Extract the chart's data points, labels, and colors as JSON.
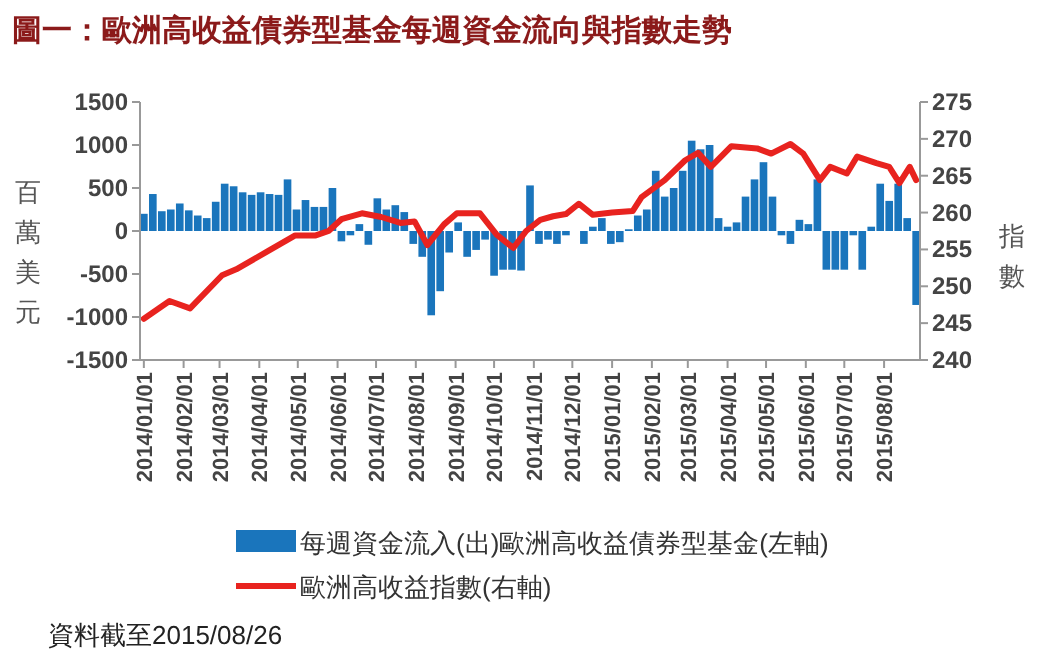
{
  "chart_data": {
    "type": "bar",
    "title": "圖一：歐洲高收益債券型基金每週資金流向與指數走勢",
    "ylabel": "百萬美元",
    "y2label": "指數",
    "annotations": [
      "資料截至2015/08/26"
    ],
    "xlim": [
      "2013-12-29",
      "2015-08-29"
    ],
    "xticks": [
      {
        "value": "2014-01-01",
        "label": "2014/01/01"
      },
      {
        "value": "2014-02-01",
        "label": "2014/02/01"
      },
      {
        "value": "2014-03-01",
        "label": "2014/03/01"
      },
      {
        "value": "2014-04-01",
        "label": "2014/04/01"
      },
      {
        "value": "2014-05-01",
        "label": "2014/05/01"
      },
      {
        "value": "2014-06-01",
        "label": "2014/06/01"
      },
      {
        "value": "2014-07-01",
        "label": "2014/07/01"
      },
      {
        "value": "2014-08-01",
        "label": "2014/08/01"
      },
      {
        "value": "2014-09-01",
        "label": "2014/09/01"
      },
      {
        "value": "2014-10-01",
        "label": "2014/10/01"
      },
      {
        "value": "2014-11-01",
        "label": "2014/11/01"
      },
      {
        "value": "2014-12-01",
        "label": "2014/12/01"
      },
      {
        "value": "2015-01-01",
        "label": "2015/01/01"
      },
      {
        "value": "2015-02-01",
        "label": "2015/02/01"
      },
      {
        "value": "2015-03-01",
        "label": "2015/03/01"
      },
      {
        "value": "2015-04-01",
        "label": "2015/04/01"
      },
      {
        "value": "2015-05-01",
        "label": "2015/05/01"
      },
      {
        "value": "2015-06-01",
        "label": "2015/06/01"
      },
      {
        "value": "2015-07-01",
        "label": "2015/07/01"
      },
      {
        "value": "2015-08-01",
        "label": "2015/08/01"
      }
    ],
    "ylim": [
      -1500,
      1500
    ],
    "yticks": [
      -1500,
      -1000,
      -500,
      0,
      500,
      1000,
      1500
    ],
    "y2lim": [
      240,
      275
    ],
    "y2ticks": [
      240,
      245,
      250,
      255,
      260,
      265,
      270,
      275
    ],
    "legend": "bottom",
    "grid": false,
    "series": [
      {
        "axis": "y",
        "name": "每週資金流入(出)歐洲高收益債券型基金(左軸)",
        "color": "#1a75bc",
        "x": [
          "2014-01-01",
          "2014-01-08",
          "2014-01-15",
          "2014-01-22",
          "2014-01-29",
          "2014-02-05",
          "2014-02-12",
          "2014-02-19",
          "2014-02-26",
          "2014-03-05",
          "2014-03-12",
          "2014-03-19",
          "2014-03-26",
          "2014-04-02",
          "2014-04-09",
          "2014-04-16",
          "2014-04-23",
          "2014-04-30",
          "2014-05-07",
          "2014-05-14",
          "2014-05-21",
          "2014-05-28",
          "2014-06-04",
          "2014-06-11",
          "2014-06-18",
          "2014-06-25",
          "2014-07-02",
          "2014-07-09",
          "2014-07-16",
          "2014-07-23",
          "2014-07-30",
          "2014-08-06",
          "2014-08-13",
          "2014-08-20",
          "2014-08-27",
          "2014-09-03",
          "2014-09-10",
          "2014-09-17",
          "2014-09-24",
          "2014-10-01",
          "2014-10-08",
          "2014-10-15",
          "2014-10-22",
          "2014-10-29",
          "2014-11-05",
          "2014-11-12",
          "2014-11-19",
          "2014-11-26",
          "2014-12-03",
          "2014-12-10",
          "2014-12-17",
          "2014-12-24",
          "2014-12-31",
          "2015-01-07",
          "2015-01-14",
          "2015-01-21",
          "2015-01-28",
          "2015-02-04",
          "2015-02-11",
          "2015-02-18",
          "2015-02-25",
          "2015-03-04",
          "2015-03-11",
          "2015-03-18",
          "2015-03-25",
          "2015-04-01",
          "2015-04-08",
          "2015-04-15",
          "2015-04-22",
          "2015-04-29",
          "2015-05-06",
          "2015-05-13",
          "2015-05-20",
          "2015-05-27",
          "2015-06-03",
          "2015-06-10",
          "2015-06-17",
          "2015-06-24",
          "2015-07-01",
          "2015-07-08",
          "2015-07-15",
          "2015-07-22",
          "2015-07-29",
          "2015-08-05",
          "2015-08-12",
          "2015-08-19",
          "2015-08-26"
        ],
        "values": [
          200,
          430,
          230,
          250,
          320,
          240,
          180,
          150,
          340,
          550,
          520,
          450,
          420,
          450,
          430,
          420,
          600,
          250,
          360,
          280,
          280,
          500,
          -120,
          -50,
          80,
          -160,
          380,
          250,
          300,
          220,
          -150,
          -300,
          -980,
          -700,
          -250,
          100,
          -300,
          -220,
          -100,
          -520,
          -450,
          -450,
          -460,
          530,
          -150,
          -100,
          -150,
          -50,
          0,
          -150,
          50,
          150,
          -150,
          -130,
          20,
          180,
          250,
          700,
          400,
          500,
          700,
          1050,
          950,
          1000,
          150,
          50,
          100,
          400,
          600,
          800,
          400,
          -50,
          -150,
          130,
          80,
          600,
          -450,
          -450,
          -450,
          -50,
          -450,
          50,
          550,
          350,
          550,
          150,
          -860
        ]
      },
      {
        "type": "line",
        "axis": "y2",
        "name": "歐洲高收益指數(右軸)",
        "color": "#e8231f",
        "x": [
          "2014-01-01",
          "2014-01-21",
          "2014-02-06",
          "2014-03-03",
          "2014-03-14",
          "2014-04-08",
          "2014-04-29",
          "2014-05-15",
          "2014-05-25",
          "2014-06-04",
          "2014-06-20",
          "2014-07-05",
          "2014-07-20",
          "2014-07-31",
          "2014-08-10",
          "2014-08-23",
          "2014-09-02",
          "2014-09-20",
          "2014-10-03",
          "2014-10-16",
          "2014-10-26",
          "2014-11-06",
          "2014-11-16",
          "2014-11-26",
          "2014-12-06",
          "2014-12-17",
          "2015-01-01",
          "2015-01-17",
          "2015-01-24",
          "2015-02-11",
          "2015-02-27",
          "2015-03-09",
          "2015-03-19",
          "2015-04-04",
          "2015-04-24",
          "2015-05-05",
          "2015-05-20",
          "2015-05-30",
          "2015-06-12",
          "2015-06-20",
          "2015-07-03",
          "2015-07-11",
          "2015-07-26",
          "2015-08-05",
          "2015-08-13",
          "2015-08-21",
          "2015-08-26"
        ],
        "values": [
          245.6,
          248,
          247,
          251.5,
          252.3,
          254.8,
          256.9,
          256.9,
          257.5,
          259.1,
          259.9,
          259.4,
          258.6,
          258.8,
          255.6,
          258.4,
          259.9,
          259.9,
          257,
          255.2,
          257.5,
          259,
          259.5,
          259.8,
          261.2,
          259.7,
          260,
          260.2,
          262.1,
          264.4,
          267.1,
          268.1,
          266.2,
          269,
          268.7,
          268,
          269.3,
          268,
          264.4,
          266.2,
          265.3,
          267.6,
          266.7,
          266.2,
          264,
          266.2,
          264.4
        ]
      }
    ]
  }
}
